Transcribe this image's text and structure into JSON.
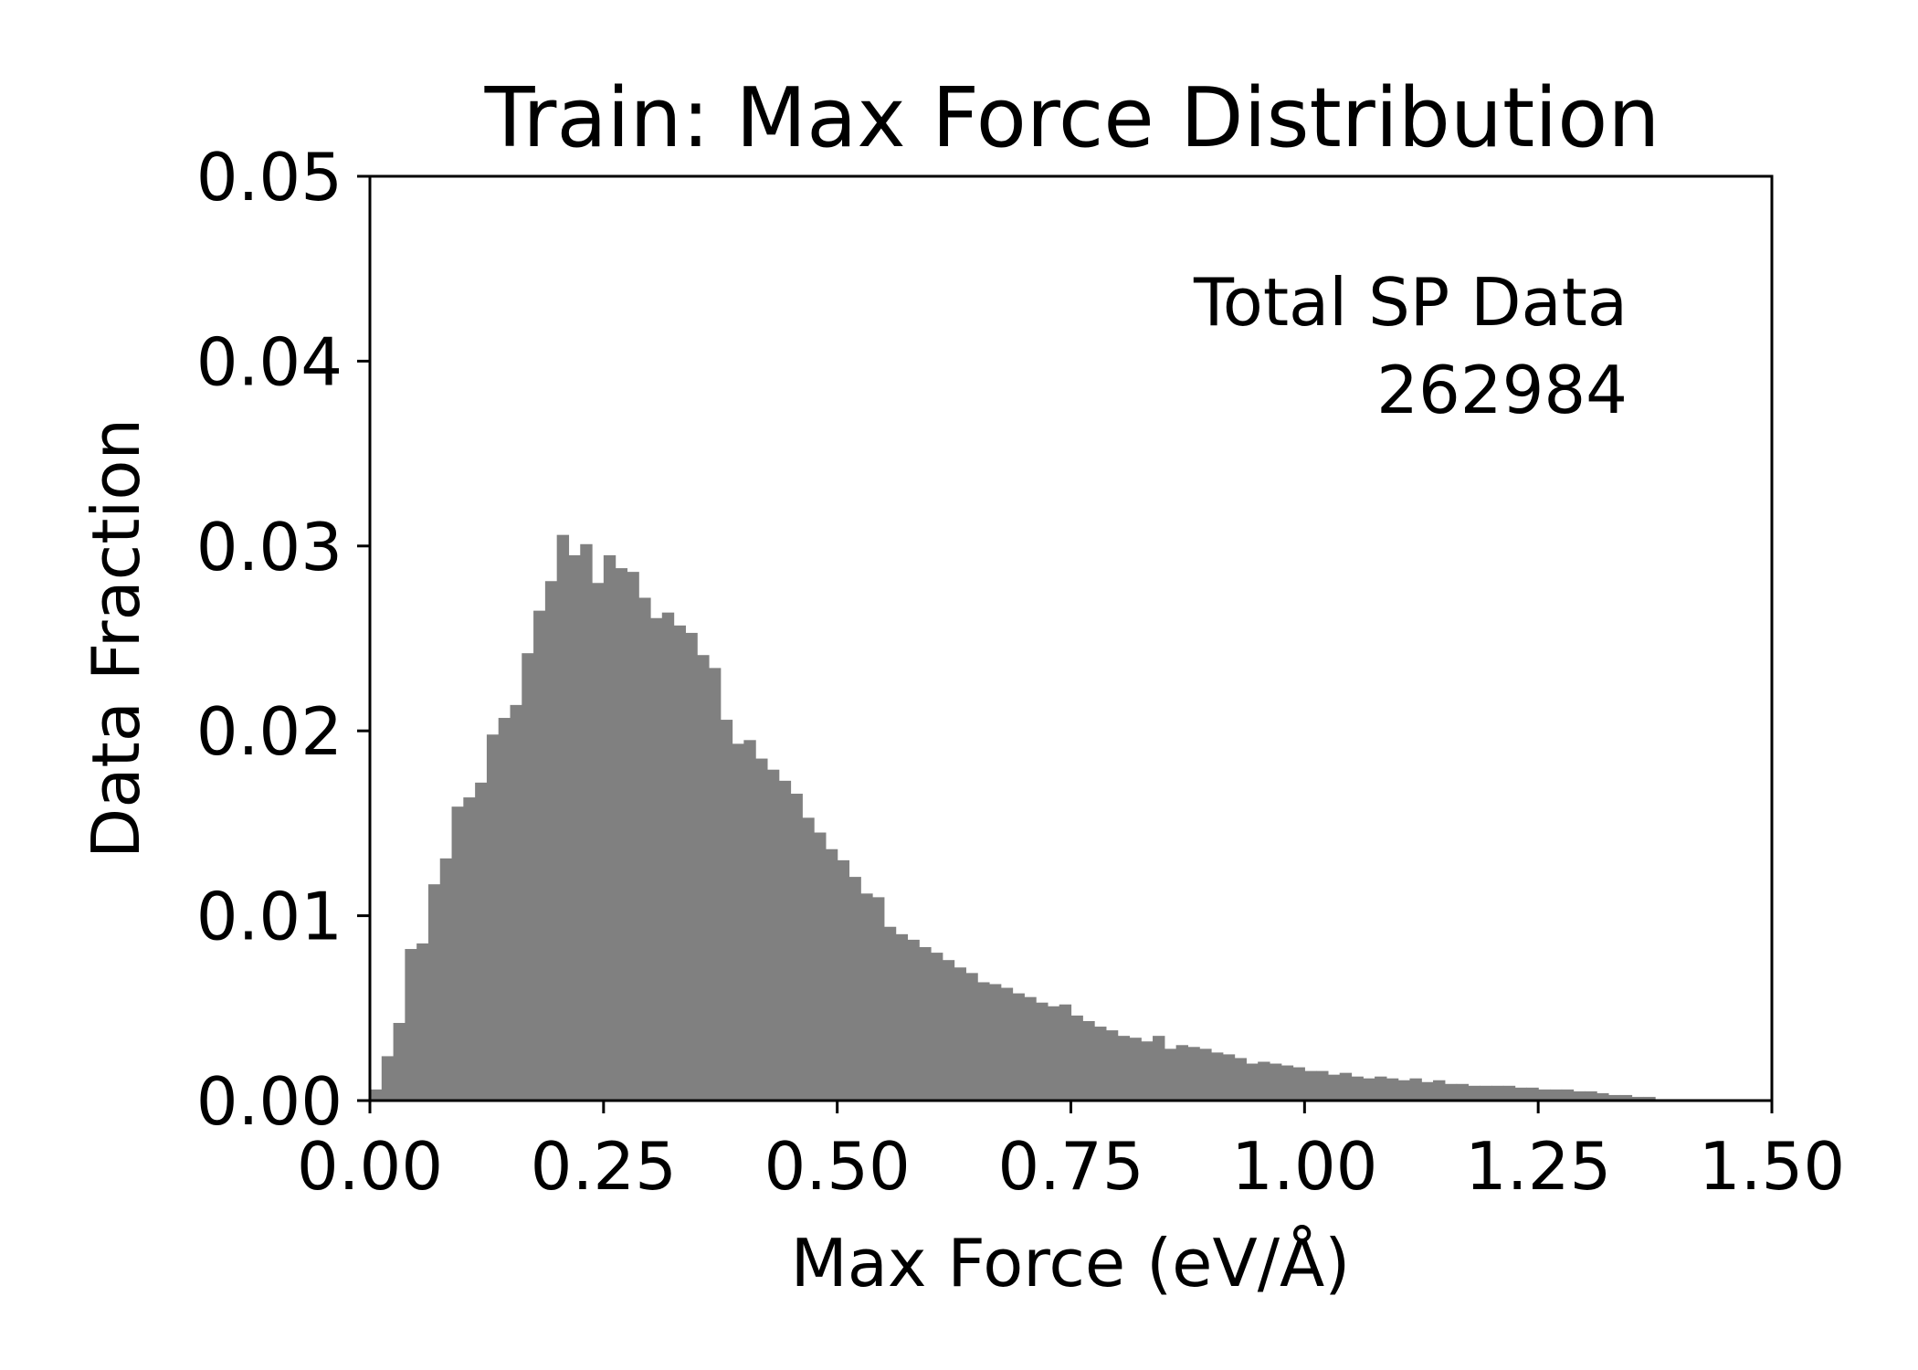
{
  "chart_data": {
    "type": "bar",
    "title": "Train: Max Force Distribution",
    "xlabel": "Max Force (eV/Å)",
    "ylabel": "Data Fraction",
    "xlim": [
      0,
      1.5
    ],
    "ylim": [
      0,
      0.05
    ],
    "xticks": [
      "0.00",
      "0.25",
      "0.50",
      "0.75",
      "1.00",
      "1.25",
      "1.50"
    ],
    "yticks": [
      "0.00",
      "0.01",
      "0.02",
      "0.03",
      "0.04",
      "0.05"
    ],
    "grid": false,
    "bar_color": "#808080",
    "bin_width": 0.0125,
    "x_start": 0.0,
    "annotation": {
      "line1": "Total SP Data",
      "line2": "262984"
    },
    "values": [
      0.0006,
      0.0024,
      0.0042,
      0.0082,
      0.0085,
      0.0117,
      0.0131,
      0.0159,
      0.0164,
      0.0172,
      0.0198,
      0.0207,
      0.0214,
      0.0242,
      0.0265,
      0.0281,
      0.0306,
      0.0295,
      0.0301,
      0.028,
      0.0295,
      0.0288,
      0.0286,
      0.0272,
      0.0261,
      0.0264,
      0.0257,
      0.0253,
      0.0241,
      0.0234,
      0.0206,
      0.0193,
      0.0195,
      0.0185,
      0.0179,
      0.0173,
      0.0166,
      0.0153,
      0.0145,
      0.0136,
      0.013,
      0.0121,
      0.0112,
      0.011,
      0.0094,
      0.009,
      0.0087,
      0.0083,
      0.008,
      0.0076,
      0.0072,
      0.0069,
      0.0064,
      0.0063,
      0.0061,
      0.0058,
      0.0056,
      0.0053,
      0.0051,
      0.0052,
      0.0046,
      0.0043,
      0.004,
      0.0038,
      0.0035,
      0.0034,
      0.0032,
      0.0035,
      0.0028,
      0.003,
      0.0029,
      0.0028,
      0.0026,
      0.0025,
      0.0023,
      0.002,
      0.0021,
      0.002,
      0.0019,
      0.0018,
      0.0016,
      0.0016,
      0.0014,
      0.0015,
      0.0013,
      0.0012,
      0.0013,
      0.0012,
      0.0011,
      0.0012,
      0.001,
      0.0011,
      0.0009,
      0.0009,
      0.0008,
      0.0008,
      0.0008,
      0.0008,
      0.0007,
      0.0007,
      0.0006,
      0.0006,
      0.0006,
      0.0005,
      0.0005,
      0.0004,
      0.0003,
      0.0003,
      0.0002,
      0.0002
    ]
  }
}
